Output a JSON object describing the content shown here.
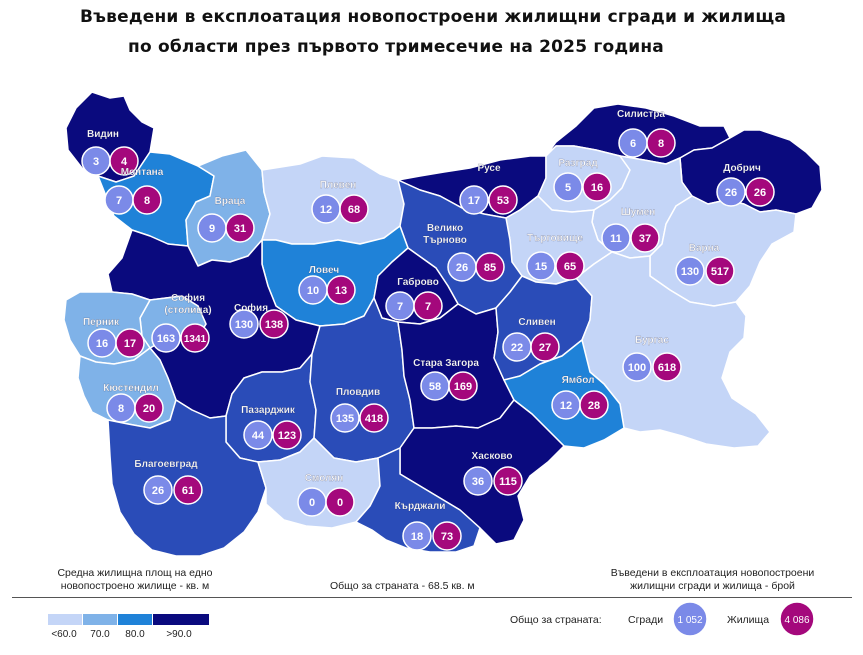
{
  "title_line1": "Въведени в експлоатация новопостроени жилищни сгради и жилища",
  "title_line2": "по области през първото тримесечие на 2025 година",
  "colors": {
    "lt60": "#c4d5f7",
    "70": "#7fb2e8",
    "80": "#1f82d8",
    "gt90_a": "#2a4cb8",
    "gt90_b": "#0a0a7e",
    "buildings_circle": "#7b8ae8",
    "dwellings_circle": "#a4087c"
  },
  "regions": [
    {
      "name": "Видин",
      "buildings": "3",
      "dwellings": "4"
    },
    {
      "name": "Монтана",
      "buildings": "7",
      "dwellings": "8"
    },
    {
      "name": "Враца",
      "buildings": "9",
      "dwellings": "31"
    },
    {
      "name": "Плевен",
      "buildings": "12",
      "dwellings": "68"
    },
    {
      "name": "Русе",
      "buildings": "17",
      "dwellings": "53"
    },
    {
      "name": "Силистра",
      "buildings": "6",
      "dwellings": "8"
    },
    {
      "name": "Разград",
      "buildings": "5",
      "dwellings": "16"
    },
    {
      "name": "Добрич",
      "buildings": "26",
      "dwellings": "26"
    },
    {
      "name": "Шумен",
      "buildings": "11",
      "dwellings": "37"
    },
    {
      "name": "Търговище",
      "buildings": "15",
      "dwellings": "65"
    },
    {
      "name": "Варна",
      "buildings": "130",
      "dwellings": "517"
    },
    {
      "name": "Велико\nТърново",
      "buildings": "26",
      "dwellings": "85"
    },
    {
      "name": "Ловеч",
      "buildings": "10",
      "dwellings": "13"
    },
    {
      "name": "Габрово",
      "buildings": "7",
      "dwellings": "7"
    },
    {
      "name": "София\n(столица)",
      "buildings": "163",
      "dwellings": "1341"
    },
    {
      "name": "София",
      "buildings": "130",
      "dwellings": "138"
    },
    {
      "name": "Перник",
      "buildings": "16",
      "dwellings": "17"
    },
    {
      "name": "Кюстендил",
      "buildings": "8",
      "dwellings": "20"
    },
    {
      "name": "Сливен",
      "buildings": "22",
      "dwellings": "27"
    },
    {
      "name": "Бургас",
      "buildings": "100",
      "dwellings": "618"
    },
    {
      "name": "Ямбол",
      "buildings": "12",
      "dwellings": "28"
    },
    {
      "name": "Стара Загора",
      "buildings": "58",
      "dwellings": "169"
    },
    {
      "name": "Пловдив",
      "buildings": "135",
      "dwellings": "418"
    },
    {
      "name": "Пазарджик",
      "buildings": "44",
      "dwellings": "123"
    },
    {
      "name": "Благоевград",
      "buildings": "26",
      "dwellings": "61"
    },
    {
      "name": "Смолян",
      "buildings": "0",
      "dwellings": "0"
    },
    {
      "name": "Хасково",
      "buildings": "36",
      "dwellings": "115"
    },
    {
      "name": "Кърджали",
      "buildings": "18",
      "dwellings": "73"
    }
  ],
  "footer": {
    "left_line1": "Средна жилищна площ на едно",
    "left_line2": "новопостроено жилище - кв. м",
    "center": "Общо за страната - 68.5 кв. м",
    "right_line1": "Въведени в експлоатация новопостроени",
    "right_line2": "жилищни сгради и жилища - брой"
  },
  "legend": {
    "ticks": [
      "<60.0",
      "70.0",
      "80.0",
      ">90.0"
    ],
    "total_label": "Общо за страната:",
    "buildings_label": "Сгради",
    "buildings_total": "1 052",
    "dwellings_label": "Жилища",
    "dwellings_total": "4 086"
  }
}
